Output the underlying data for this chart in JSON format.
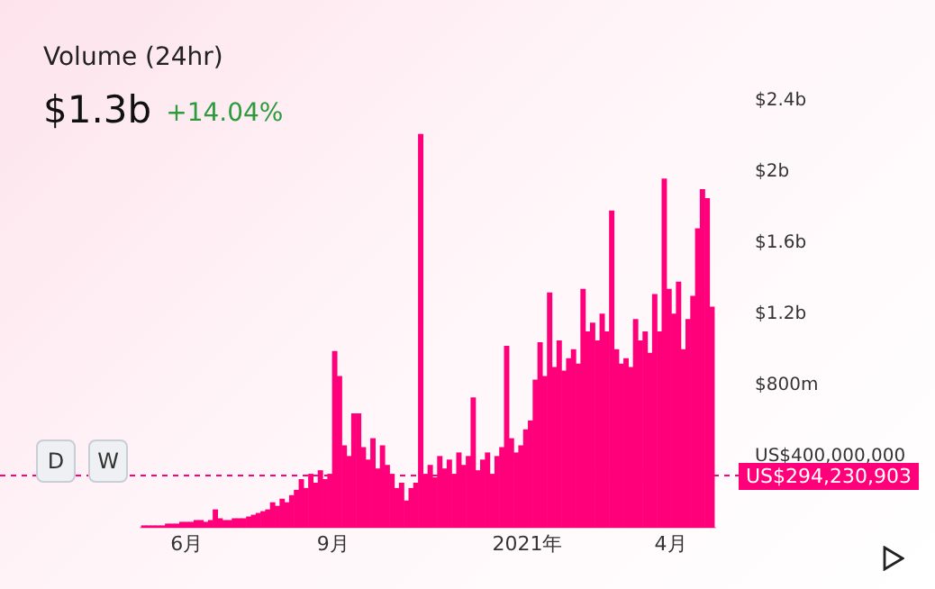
{
  "chart_data": {
    "type": "bar",
    "title": "Volume (24hr)",
    "subtitle": "$1.3b",
    "annotations": [
      "+14.04%",
      "D",
      "W"
    ],
    "x": [
      "2020-05-05",
      "2020-05-08",
      "2020-05-11",
      "2020-05-14",
      "2020-05-17",
      "2020-05-20",
      "2020-05-23",
      "2020-05-26",
      "2020-05-29",
      "2020-06-01",
      "2020-06-04",
      "2020-06-07",
      "2020-06-10",
      "2020-06-13",
      "2020-06-16",
      "2020-06-19",
      "2020-06-22",
      "2020-06-25",
      "2020-06-28",
      "2020-07-01",
      "2020-07-04",
      "2020-07-07",
      "2020-07-10",
      "2020-07-13",
      "2020-07-16",
      "2020-07-19",
      "2020-07-22",
      "2020-07-25",
      "2020-07-28",
      "2020-07-31",
      "2020-08-03",
      "2020-08-06",
      "2020-08-09",
      "2020-08-12",
      "2020-08-15",
      "2020-08-18",
      "2020-08-21",
      "2020-08-24",
      "2020-08-27",
      "2020-08-30",
      "2020-09-02",
      "2020-09-05",
      "2020-09-08",
      "2020-09-11",
      "2020-09-14",
      "2020-09-17",
      "2020-09-20",
      "2020-09-23",
      "2020-09-26",
      "2020-09-29",
      "2020-10-02",
      "2020-10-05",
      "2020-10-08",
      "2020-10-11",
      "2020-10-14",
      "2020-10-17",
      "2020-10-20",
      "2020-10-23",
      "2020-10-26",
      "2020-10-29",
      "2020-11-01",
      "2020-11-04",
      "2020-11-07",
      "2020-11-10",
      "2020-11-13",
      "2020-11-16",
      "2020-11-19",
      "2020-11-22",
      "2020-11-25",
      "2020-11-28",
      "2020-12-01",
      "2020-12-04",
      "2020-12-07",
      "2020-12-10",
      "2020-12-13",
      "2020-12-16",
      "2020-12-19",
      "2020-12-22",
      "2020-12-25",
      "2020-12-28",
      "2020-12-31",
      "2021-01-03",
      "2021-01-06",
      "2021-01-09",
      "2021-01-12",
      "2021-01-15",
      "2021-01-18",
      "2021-01-21",
      "2021-01-24",
      "2021-01-27",
      "2021-01-30",
      "2021-02-02",
      "2021-02-05",
      "2021-02-08",
      "2021-02-11",
      "2021-02-14",
      "2021-02-17",
      "2021-02-20",
      "2021-02-23",
      "2021-02-26",
      "2021-03-01",
      "2021-03-04",
      "2021-03-07",
      "2021-03-10",
      "2021-03-13",
      "2021-03-16",
      "2021-03-19",
      "2021-03-22",
      "2021-03-25",
      "2021-03-28",
      "2021-03-31",
      "2021-04-03",
      "2021-04-06",
      "2021-04-09",
      "2021-04-12",
      "2021-04-15",
      "2021-04-18",
      "2021-04-21",
      "2021-04-24",
      "2021-04-27"
    ],
    "values": [
      10000000,
      10000000,
      10000000,
      10000000,
      10000000,
      20000000,
      20000000,
      20000000,
      30000000,
      30000000,
      30000000,
      40000000,
      40000000,
      30000000,
      40000000,
      100000000,
      50000000,
      40000000,
      40000000,
      50000000,
      50000000,
      50000000,
      60000000,
      70000000,
      80000000,
      90000000,
      100000000,
      140000000,
      120000000,
      160000000,
      140000000,
      180000000,
      210000000,
      270000000,
      220000000,
      300000000,
      250000000,
      320000000,
      270000000,
      300000000,
      990000000,
      850000000,
      460000000,
      400000000,
      640000000,
      640000000,
      450000000,
      380000000,
      500000000,
      330000000,
      460000000,
      350000000,
      300000000,
      220000000,
      250000000,
      150000000,
      220000000,
      250000000,
      2210000000,
      300000000,
      350000000,
      280000000,
      400000000,
      330000000,
      380000000,
      300000000,
      420000000,
      350000000,
      400000000,
      730000000,
      320000000,
      380000000,
      420000000,
      300000000,
      400000000,
      450000000,
      1020000000,
      500000000,
      420000000,
      460000000,
      550000000,
      600000000,
      830000000,
      1040000000,
      850000000,
      1320000000,
      900000000,
      1050000000,
      880000000,
      950000000,
      1000000000,
      920000000,
      1340000000,
      1100000000,
      1150000000,
      1050000000,
      1200000000,
      1100000000,
      1780000000,
      1000000000,
      920000000,
      950000000,
      900000000,
      1170000000,
      1050000000,
      1100000000,
      980000000,
      1310000000,
      1100000000,
      1960000000,
      1340000000,
      1200000000,
      1380000000,
      1000000000,
      1170000000,
      1300000000,
      1680000000,
      1900000000,
      1850000000,
      1240000000
    ],
    "color": "#ff007a",
    "xlim": [
      "2020-05-03",
      "2021-04-29"
    ],
    "xticks": [
      {
        "value": "2020-06",
        "label": "6月"
      },
      {
        "value": "2020-09",
        "label": "9月"
      },
      {
        "value": "2021-01",
        "label": "2021年"
      },
      {
        "value": "2021-04",
        "label": "4月"
      }
    ],
    "ylim": [
      0,
      2400000000
    ],
    "yticks": [
      {
        "value": 400000000,
        "label": "US$400,000,000"
      },
      {
        "value": 800000000,
        "label": "$800m"
      },
      {
        "value": 1200000000,
        "label": "$1.2b"
      },
      {
        "value": 1600000000,
        "label": "$1.6b"
      },
      {
        "value": 2000000000,
        "label": "$2b"
      },
      {
        "value": 2400000000,
        "label": "$2.4b"
      }
    ],
    "ref_lines": [
      {
        "axis": "y",
        "value": 294230903,
        "label": "US$294,230,903",
        "color": "#ff007a",
        "line_style": "dashed"
      }
    ]
  }
}
